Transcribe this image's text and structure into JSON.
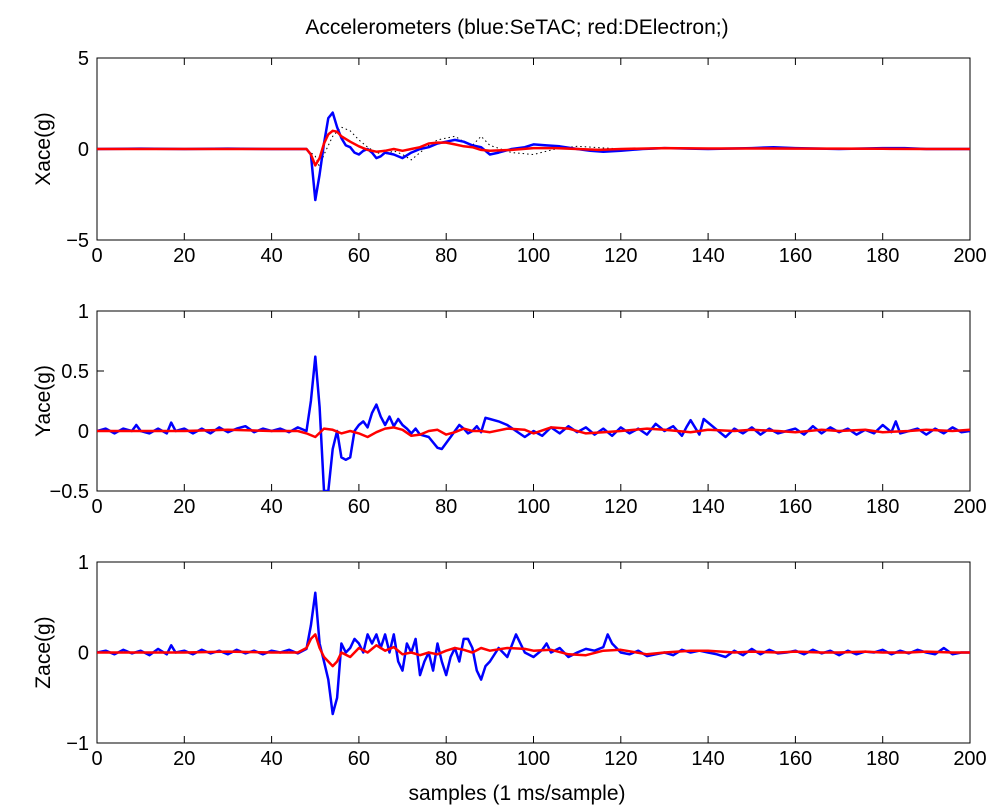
{
  "chart_data": [
    {
      "type": "line",
      "title": "Accelerometers (blue:SeTAC; red:DElectron;)",
      "xlabel": "",
      "ylabel": "Xace(g)",
      "xlim": [
        0,
        200
      ],
      "ylim": [
        -5,
        5
      ],
      "xticks": [
        0,
        20,
        40,
        60,
        80,
        100,
        120,
        140,
        160,
        180,
        200
      ],
      "yticks": [
        -5,
        0,
        5
      ],
      "ytick_labels": [
        "−5",
        "0",
        "5"
      ],
      "grid": false,
      "series": [
        {
          "color": "#0000ff",
          "style": "solid",
          "x": [
            0,
            10,
            20,
            30,
            40,
            48,
            49,
            50,
            51,
            52,
            53,
            54,
            55,
            56,
            57,
            58,
            59,
            60,
            61,
            62,
            63,
            64,
            65,
            66,
            68,
            70,
            72,
            74,
            76,
            78,
            80,
            82,
            84,
            86,
            88,
            90,
            92,
            95,
            98,
            100,
            103,
            106,
            110,
            113,
            116,
            120,
            125,
            130,
            140,
            150,
            155,
            160,
            170,
            180,
            185,
            190,
            200
          ],
          "y": [
            0,
            0.02,
            0,
            0.02,
            0,
            0,
            -0.3,
            -2.8,
            -1.4,
            0.3,
            1.7,
            2.0,
            1.2,
            0.6,
            0.2,
            0.1,
            -0.2,
            -0.3,
            -0.1,
            0.0,
            -0.2,
            -0.5,
            -0.4,
            -0.2,
            -0.3,
            -0.5,
            -0.2,
            0.0,
            0.1,
            0.3,
            0.4,
            0.5,
            0.4,
            0.2,
            0.1,
            -0.3,
            -0.2,
            0.0,
            0.1,
            0.25,
            0.2,
            0.15,
            0.0,
            -0.1,
            -0.15,
            -0.1,
            0.0,
            0.05,
            0.0,
            0.05,
            0.1,
            0.05,
            0.0,
            0.05,
            0.05,
            0.0,
            0.0
          ]
        },
        {
          "color": "#ff0000",
          "style": "solid",
          "x": [
            0,
            20,
            40,
            48,
            49,
            50,
            51,
            52,
            53,
            54,
            55,
            56,
            58,
            60,
            62,
            64,
            66,
            68,
            70,
            72,
            74,
            76,
            78,
            80,
            82,
            84,
            86,
            88,
            90,
            95,
            100,
            105,
            110,
            115,
            120,
            130,
            140,
            150,
            160,
            170,
            180,
            190,
            200
          ],
          "y": [
            0,
            0,
            0,
            0,
            -0.3,
            -0.9,
            -0.5,
            0.3,
            0.8,
            1.0,
            0.95,
            0.7,
            0.4,
            0.15,
            -0.05,
            -0.15,
            -0.1,
            0.0,
            -0.1,
            0.0,
            0.1,
            0.3,
            0.35,
            0.35,
            0.25,
            0.15,
            0.1,
            -0.05,
            -0.1,
            -0.05,
            0.05,
            0.05,
            0.0,
            -0.05,
            0.0,
            0.05,
            0.03,
            0.03,
            0.02,
            0.02,
            0.01,
            0.0,
            0.0
          ]
        },
        {
          "color": "#000000",
          "style": "dotted",
          "x": [
            0,
            40,
            48,
            50,
            51,
            52,
            54,
            56,
            58,
            60,
            62,
            64,
            66,
            68,
            70,
            72,
            74,
            76,
            78,
            80,
            82,
            84,
            86,
            88,
            90,
            95,
            100,
            105,
            110,
            120,
            130,
            140,
            160,
            180,
            200
          ],
          "y": [
            0,
            0,
            0,
            -0.4,
            -1.0,
            -0.3,
            0.7,
            1.2,
            1.0,
            0.5,
            0.1,
            -0.2,
            -0.3,
            -0.1,
            -0.3,
            -0.6,
            -0.2,
            0.2,
            0.5,
            0.6,
            0.7,
            0.4,
            0.2,
            0.7,
            0.2,
            -0.2,
            -0.3,
            0.0,
            0.15,
            0.0,
            0.05,
            0.0,
            0.05,
            0.0,
            0.0
          ]
        }
      ]
    },
    {
      "type": "line",
      "title": "",
      "xlabel": "",
      "ylabel": "Yace(g)",
      "xlim": [
        0,
        200
      ],
      "ylim": [
        -0.5,
        1
      ],
      "xticks": [
        0,
        20,
        40,
        60,
        80,
        100,
        120,
        140,
        160,
        180,
        200
      ],
      "yticks": [
        -0.5,
        0,
        0.5,
        1
      ],
      "ytick_labels": [
        "−0.5",
        "0",
        "0.5",
        "1"
      ],
      "grid": false,
      "series": [
        {
          "color": "#0000ff",
          "style": "solid",
          "x": [
            0,
            2,
            4,
            6,
            8,
            9,
            10,
            12,
            14,
            16,
            17,
            18,
            20,
            22,
            24,
            26,
            28,
            30,
            32,
            34,
            36,
            38,
            40,
            42,
            44,
            46,
            48,
            49,
            50,
            51,
            52,
            53,
            54,
            55,
            56,
            57,
            58,
            59,
            60,
            61,
            62,
            63,
            64,
            65,
            66,
            67,
            68,
            69,
            70,
            71,
            72,
            73,
            74,
            76,
            78,
            79,
            80,
            81,
            82,
            83,
            84,
            85,
            86,
            87,
            88,
            89,
            90,
            92,
            94,
            96,
            98,
            100,
            102,
            104,
            106,
            108,
            110,
            112,
            114,
            116,
            118,
            120,
            122,
            124,
            126,
            128,
            130,
            132,
            134,
            135,
            136,
            138,
            139,
            140,
            142,
            144,
            146,
            148,
            150,
            152,
            154,
            156,
            158,
            160,
            162,
            164,
            166,
            168,
            170,
            172,
            174,
            176,
            178,
            180,
            182,
            183,
            184,
            186,
            188,
            190,
            192,
            194,
            196,
            198,
            200
          ],
          "y": [
            0,
            0.02,
            -0.02,
            0.02,
            0,
            0.05,
            0,
            -0.02,
            0.02,
            -0.02,
            0.07,
            0.0,
            0.02,
            -0.02,
            0.02,
            -0.02,
            0.03,
            -0.01,
            0.02,
            0.04,
            -0.01,
            0.02,
            0.0,
            0.02,
            -0.01,
            0.03,
            0.0,
            0.25,
            0.62,
            0.2,
            -0.5,
            -0.5,
            -0.15,
            0.0,
            -0.22,
            -0.24,
            -0.22,
            0.0,
            0.05,
            0.08,
            0.03,
            0.15,
            0.22,
            0.12,
            0.05,
            0.12,
            0.04,
            0.1,
            0.05,
            0.02,
            -0.02,
            0.02,
            -0.03,
            -0.05,
            -0.14,
            -0.15,
            -0.1,
            -0.05,
            0.0,
            0.05,
            0.02,
            -0.02,
            0.0,
            0.04,
            -0.01,
            0.11,
            0.1,
            0.08,
            0.05,
            0.0,
            -0.05,
            0.0,
            -0.04,
            0.03,
            -0.02,
            0.04,
            -0.01,
            0.03,
            -0.03,
            0.02,
            -0.04,
            0.03,
            -0.02,
            0.02,
            -0.03,
            0.06,
            0.0,
            0.04,
            -0.04,
            0.03,
            0.09,
            -0.03,
            0.1,
            0.07,
            0.01,
            -0.05,
            0.02,
            -0.02,
            0.03,
            -0.03,
            0.02,
            -0.02,
            0.0,
            0.02,
            -0.03,
            0.04,
            -0.02,
            0.03,
            -0.01,
            0.02,
            -0.03,
            0.01,
            -0.02,
            0.05,
            -0.01,
            0.08,
            -0.02,
            0.0,
            0.02,
            -0.03,
            0.02,
            -0.02,
            0.03,
            -0.01,
            0.0
          ]
        },
        {
          "color": "#ff0000",
          "style": "solid",
          "x": [
            0,
            10,
            20,
            30,
            40,
            46,
            48,
            50,
            52,
            54,
            56,
            58,
            60,
            62,
            64,
            66,
            68,
            70,
            72,
            74,
            76,
            78,
            80,
            82,
            84,
            86,
            88,
            90,
            94,
            98,
            100,
            104,
            108,
            112,
            116,
            120,
            126,
            130,
            136,
            140,
            146,
            150,
            156,
            160,
            166,
            170,
            176,
            180,
            186,
            190,
            196,
            200
          ],
          "y": [
            0,
            0.0,
            0.0,
            0.01,
            0.0,
            0.0,
            -0.02,
            -0.05,
            0.02,
            0.01,
            -0.02,
            0.0,
            -0.02,
            -0.05,
            -0.01,
            0.02,
            0.03,
            0.01,
            -0.04,
            -0.03,
            0.0,
            0.01,
            -0.03,
            -0.01,
            0.02,
            0.0,
            0.0,
            -0.01,
            0.02,
            0.01,
            -0.02,
            0.03,
            0.02,
            -0.02,
            -0.01,
            0.0,
            0.02,
            0.01,
            -0.01,
            0.01,
            0.0,
            0.01,
            0.0,
            -0.01,
            0.01,
            0.0,
            0.01,
            -0.01,
            0.0,
            0.01,
            0.0,
            0.01
          ]
        }
      ]
    },
    {
      "type": "line",
      "title": "",
      "xlabel": "samples (1 ms/sample)",
      "ylabel": "Zace(g)",
      "xlim": [
        0,
        200
      ],
      "ylim": [
        -1,
        1
      ],
      "xticks": [
        0,
        20,
        40,
        60,
        80,
        100,
        120,
        140,
        160,
        180,
        200
      ],
      "yticks": [
        -1,
        0,
        1
      ],
      "ytick_labels": [
        "−1",
        "0",
        "1"
      ],
      "grid": false,
      "series": [
        {
          "color": "#0000ff",
          "style": "solid",
          "x": [
            0,
            2,
            4,
            6,
            8,
            10,
            12,
            14,
            16,
            17,
            18,
            20,
            22,
            24,
            26,
            28,
            30,
            32,
            34,
            36,
            38,
            40,
            42,
            44,
            46,
            48,
            49,
            50,
            51,
            52,
            53,
            54,
            55,
            56,
            57,
            58,
            59,
            60,
            61,
            62,
            63,
            64,
            65,
            66,
            67,
            68,
            69,
            70,
            71,
            72,
            73,
            74,
            75,
            76,
            77,
            78,
            79,
            80,
            81,
            82,
            83,
            84,
            85,
            86,
            87,
            88,
            89,
            90,
            92,
            94,
            96,
            98,
            100,
            102,
            103,
            104,
            106,
            108,
            110,
            112,
            114,
            116,
            117,
            118,
            120,
            122,
            124,
            126,
            128,
            130,
            132,
            134,
            136,
            138,
            140,
            142,
            144,
            146,
            148,
            150,
            152,
            154,
            156,
            158,
            160,
            162,
            164,
            166,
            168,
            170,
            172,
            174,
            176,
            178,
            180,
            182,
            184,
            186,
            188,
            190,
            192,
            194,
            196,
            198,
            200
          ],
          "y": [
            0,
            0.02,
            -0.02,
            0.03,
            -0.01,
            0.02,
            -0.03,
            0.04,
            -0.02,
            0.08,
            0.0,
            0.02,
            -0.02,
            0.03,
            -0.01,
            0.02,
            -0.02,
            0.03,
            -0.01,
            0.02,
            -0.02,
            0.02,
            0.0,
            0.03,
            -0.01,
            0.04,
            0.3,
            0.66,
            0.1,
            -0.1,
            -0.3,
            -0.68,
            -0.5,
            0.1,
            0.0,
            0.05,
            0.15,
            0.1,
            0.0,
            0.2,
            0.1,
            0.2,
            0.05,
            0.2,
            0.0,
            0.2,
            -0.1,
            -0.2,
            0.1,
            0.0,
            0.15,
            -0.25,
            -0.1,
            0.0,
            -0.2,
            0.1,
            -0.1,
            -0.25,
            -0.05,
            0.05,
            -0.1,
            0.15,
            0.15,
            0.05,
            -0.2,
            -0.3,
            -0.15,
            -0.1,
            0.05,
            -0.05,
            0.2,
            0.0,
            -0.05,
            0.03,
            0.1,
            0.0,
            0.05,
            -0.05,
            0.0,
            0.04,
            0.02,
            0.06,
            0.2,
            0.1,
            0.0,
            -0.02,
            0.02,
            -0.04,
            -0.02,
            0.0,
            -0.03,
            0.03,
            0.0,
            0.02,
            0.0,
            -0.02,
            -0.05,
            0.02,
            -0.03,
            0.04,
            -0.02,
            0.03,
            -0.01,
            0.0,
            0.02,
            -0.02,
            0.03,
            -0.01,
            0.02,
            -0.03,
            0.02,
            -0.02,
            0.01,
            0.0,
            0.03,
            -0.02,
            0.02,
            -0.01,
            0.03,
            0.0,
            -0.02,
            0.05,
            -0.02,
            0.0,
            0.0
          ]
        },
        {
          "color": "#ff0000",
          "style": "solid",
          "x": [
            0,
            10,
            20,
            30,
            40,
            46,
            48,
            49,
            50,
            51,
            52,
            53,
            54,
            55,
            56,
            58,
            60,
            62,
            64,
            66,
            68,
            70,
            72,
            74,
            76,
            78,
            80,
            82,
            84,
            86,
            88,
            90,
            94,
            98,
            100,
            104,
            108,
            112,
            116,
            120,
            126,
            130,
            136,
            140,
            146,
            150,
            156,
            160,
            166,
            170,
            176,
            180,
            186,
            190,
            196,
            200
          ],
          "y": [
            0,
            0.0,
            0.0,
            0.01,
            0.0,
            0.0,
            0.05,
            0.15,
            0.2,
            0.05,
            -0.05,
            -0.1,
            -0.15,
            -0.1,
            0.0,
            -0.05,
            0.05,
            0.0,
            0.08,
            0.02,
            0.06,
            -0.02,
            0.0,
            -0.03,
            0.0,
            -0.02,
            0.02,
            0.05,
            0.03,
            0.0,
            0.05,
            0.02,
            0.05,
            0.04,
            0.02,
            0.03,
            -0.02,
            -0.03,
            0.02,
            0.03,
            -0.02,
            0.0,
            0.02,
            0.02,
            0.0,
            0.01,
            0.0,
            0.01,
            0.0,
            0.0,
            0.01,
            0.0,
            0.0,
            0.01,
            0.0,
            0.0
          ]
        }
      ]
    }
  ]
}
